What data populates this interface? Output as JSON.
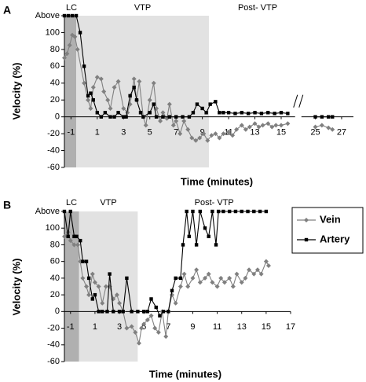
{
  "chart_data": [
    {
      "type": "line",
      "panel": "A",
      "ylabel": "Velocity (%)",
      "xlabel": "Time (minutes)",
      "xlim": [
        -1.5,
        27.9
      ],
      "axis_break": [
        16,
        24
      ],
      "xticks": [
        -1,
        1,
        3,
        5,
        7,
        9,
        11,
        13,
        15,
        25,
        27
      ],
      "ylim": [
        -60,
        120
      ],
      "yticks": [
        {
          "value": 120,
          "label": "Above"
        },
        100,
        80,
        60,
        40,
        20,
        0,
        -20,
        -40,
        -60
      ],
      "regions": [
        {
          "label": "LC",
          "start": -1.5,
          "end": -0.6,
          "color": "#b0b0b0"
        },
        {
          "label": "VTP",
          "start": -0.6,
          "end": 9.5,
          "color": "#e2e2e2"
        },
        {
          "label": "Post- VTP",
          "start": 9.5,
          "end": 27.9,
          "color": "#ffffff"
        }
      ],
      "series": [
        {
          "color": "#808080",
          "marker": "diamond",
          "x": [
            -1.5,
            -1.3,
            -1.1,
            -0.9,
            -0.7,
            -0.5,
            0,
            0.3,
            0.5,
            0.7,
            1,
            1.3,
            1.5,
            1.8,
            2,
            2.3,
            2.6,
            3,
            3.3,
            3.5,
            3.8,
            4,
            4.2,
            4.5,
            4.7,
            5,
            5.3,
            5.5,
            5.8,
            6,
            6.3,
            6.5,
            6.8,
            7,
            7.3,
            7.6,
            7.9,
            8.2,
            8.5,
            8.8,
            9.1,
            9.4,
            9.7,
            10,
            10.3,
            10.6,
            11,
            11.3,
            11.6,
            12,
            12.3,
            12.6,
            13,
            13.3,
            13.6,
            14,
            14.3,
            14.6,
            15,
            15.5,
            25,
            25.5,
            26,
            26.3
          ],
          "values": [
            70,
            75,
            85,
            97,
            95,
            80,
            40,
            20,
            10,
            35,
            47,
            45,
            30,
            20,
            10,
            35,
            42,
            10,
            5,
            15,
            45,
            20,
            42,
            0,
            -10,
            20,
            40,
            10,
            -5,
            5,
            -2,
            15,
            -10,
            -5,
            -20,
            -5,
            -15,
            -25,
            -28,
            -25,
            -20,
            -28,
            -22,
            -20,
            -25,
            -20,
            -18,
            -22,
            -15,
            -10,
            -15,
            -12,
            -8,
            -12,
            -10,
            -8,
            -12,
            -10,
            -10,
            -8,
            -12,
            -10,
            -13,
            -15
          ]
        },
        {
          "color": "#000000",
          "marker": "square",
          "x": [
            -1.5,
            -1.2,
            -0.9,
            -0.6,
            -0.3,
            0,
            0.3,
            0.5,
            0.7,
            1,
            1.3,
            1.6,
            2,
            2.3,
            2.6,
            3,
            3.2,
            3.5,
            3.8,
            4,
            4.3,
            4.5,
            5,
            5.3,
            5.5,
            6,
            6.5,
            7,
            7.5,
            8,
            8.3,
            8.6,
            9,
            9.3,
            9.6,
            10,
            10.3,
            10.6,
            11,
            11.5,
            12,
            12.5,
            13,
            13.5,
            14,
            14.5,
            15,
            15.5,
            25,
            25.5,
            26,
            26.3
          ],
          "values": [
            120,
            120,
            120,
            120,
            100,
            60,
            25,
            28,
            20,
            5,
            0,
            5,
            0,
            0,
            5,
            0,
            0,
            25,
            35,
            20,
            5,
            0,
            5,
            15,
            0,
            0,
            0,
            0,
            0,
            0,
            5,
            15,
            10,
            5,
            15,
            18,
            5,
            5,
            5,
            4,
            5,
            4,
            5,
            4,
            5,
            4,
            5,
            4,
            0,
            0,
            0,
            0
          ]
        }
      ]
    },
    {
      "type": "line",
      "panel": "B",
      "ylabel": "Velocity (%)",
      "xlabel": "Time (minutes)",
      "xlim": [
        -1.5,
        17
      ],
      "xticks": [
        -1,
        1,
        3,
        5,
        7,
        9,
        11,
        13,
        15,
        17
      ],
      "ylim": [
        -60,
        120
      ],
      "yticks": [
        {
          "value": 120,
          "label": "Above"
        },
        100,
        80,
        60,
        40,
        20,
        0,
        -20,
        -40,
        -60
      ],
      "regions": [
        {
          "label": "LC",
          "start": -1.5,
          "end": -0.3,
          "color": "#b0b0b0"
        },
        {
          "label": "VTP",
          "start": -0.3,
          "end": 4.5,
          "color": "#e2e2e2"
        },
        {
          "label": "Post- VTP",
          "start": 4.5,
          "end": 17,
          "color": "#ffffff"
        }
      ],
      "series": [
        {
          "name": "Vein",
          "color": "#808080",
          "marker": "diamond",
          "x": [
            -1.5,
            -1.2,
            -1,
            -0.7,
            -0.4,
            -0.2,
            0,
            0.3,
            0.5,
            0.8,
            1,
            1.3,
            1.6,
            1.9,
            2.2,
            2.5,
            2.8,
            3,
            3.3,
            3.6,
            4,
            4.3,
            4.6,
            4.8,
            5,
            5.3,
            5.6,
            5.9,
            6.2,
            6.5,
            6.8,
            7,
            7.3,
            7.6,
            8,
            8.3,
            8.6,
            9,
            9.3,
            9.6,
            10,
            10.3,
            10.6,
            11,
            11.3,
            11.6,
            12,
            12.3,
            12.6,
            13,
            13.3,
            13.6,
            14,
            14.3,
            14.6,
            15,
            15.2
          ],
          "values": [
            90,
            95,
            85,
            80,
            80,
            60,
            40,
            30,
            20,
            45,
            35,
            30,
            10,
            30,
            30,
            15,
            20,
            10,
            0,
            -20,
            -18,
            -25,
            -38,
            -20,
            -15,
            -10,
            -5,
            -20,
            -25,
            0,
            -30,
            0,
            20,
            10,
            30,
            45,
            30,
            40,
            50,
            35,
            40,
            45,
            35,
            30,
            40,
            35,
            40,
            30,
            45,
            35,
            40,
            50,
            45,
            50,
            45,
            60,
            55
          ]
        },
        {
          "name": "Artery",
          "color": "#000000",
          "marker": "square",
          "x": [
            -1.5,
            -1.2,
            -1,
            -0.7,
            -0.5,
            -0.2,
            0,
            0.3,
            0.5,
            0.8,
            1,
            1.3,
            1.6,
            2,
            2.2,
            2.5,
            3,
            3.3,
            3.6,
            4,
            4.5,
            5,
            5.3,
            5.6,
            6,
            6.3,
            6.6,
            7,
            7.3,
            7.6,
            8,
            8.2,
            8.5,
            8.7,
            9,
            9.3,
            9.6,
            10,
            10.3,
            10.6,
            10.9,
            11.1,
            11.5,
            12,
            12.5,
            13,
            13.5,
            14,
            14.5,
            15
          ],
          "values": [
            120,
            90,
            120,
            90,
            90,
            85,
            60,
            60,
            40,
            15,
            20,
            0,
            0,
            0,
            45,
            0,
            0,
            0,
            40,
            0,
            0,
            0,
            0,
            15,
            5,
            -5,
            0,
            0,
            25,
            40,
            40,
            80,
            120,
            90,
            120,
            80,
            120,
            100,
            90,
            120,
            80,
            120,
            120,
            120,
            120,
            120,
            120,
            120,
            120,
            120
          ]
        }
      ]
    }
  ]
}
